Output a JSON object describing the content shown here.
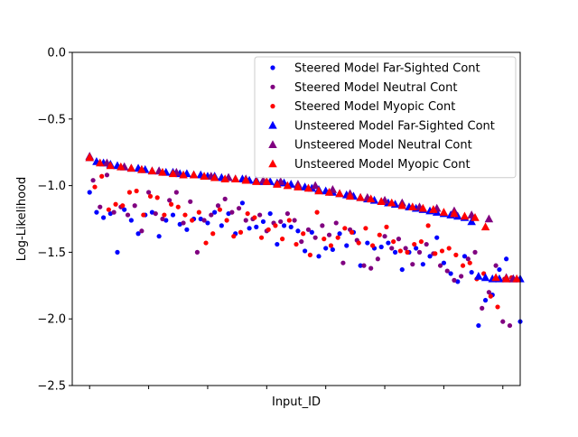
{
  "chart_data": {
    "type": "scatter",
    "title": "",
    "xlabel": "Input_ID",
    "ylabel": "Log-Likelihood",
    "ylim": [
      -2.5,
      0
    ],
    "yticks": [
      0,
      -0.5,
      -1,
      -1.5,
      -2,
      -2.5
    ],
    "ytick_labels": [
      "0.0",
      "−0.5",
      "−1.0",
      "−1.5",
      "−2.0",
      "−2.5"
    ],
    "xlim": [
      -5,
      124
    ],
    "xticks": [
      0,
      17,
      34,
      51,
      68,
      85,
      102,
      119
    ],
    "xtick_labels": [
      "",
      "",
      "",
      "",
      "",
      "",
      "",
      ""
    ],
    "grid": false,
    "legend_position": "top-right",
    "series": [
      {
        "name": "Steered Model Far-Sighted Cont",
        "marker": "dot",
        "color": "#0000ff",
        "x": [
          0,
          2,
          4,
          6,
          8,
          10,
          12,
          14,
          16,
          18,
          20,
          22,
          24,
          26,
          28,
          30,
          32,
          34,
          36,
          38,
          40,
          42,
          44,
          46,
          48,
          50,
          52,
          54,
          56,
          58,
          60,
          62,
          64,
          66,
          68,
          70,
          72,
          74,
          76,
          78,
          80,
          82,
          84,
          86,
          88,
          90,
          92,
          94,
          96,
          98,
          100,
          102,
          104,
          106,
          108,
          110,
          112,
          114,
          116,
          118,
          120,
          122,
          124
        ],
        "y": [
          -1.05,
          -1.2,
          -1.24,
          -1.21,
          -1.5,
          -1.18,
          -1.26,
          -1.36,
          -1.22,
          -1.2,
          -1.38,
          -1.26,
          -1.22,
          -1.29,
          -1.33,
          -1.25,
          -1.25,
          -1.28,
          -1.2,
          -1.3,
          -1.21,
          -1.36,
          -1.13,
          -1.32,
          -1.31,
          -1.27,
          -1.21,
          -1.44,
          -1.3,
          -1.31,
          -1.34,
          -1.49,
          -1.35,
          -1.53,
          -1.47,
          -1.48,
          -1.36,
          -1.45,
          -1.35,
          -1.6,
          -1.43,
          -1.47,
          -1.46,
          -1.43,
          -1.5,
          -1.63,
          -1.5,
          -1.47,
          -1.59,
          -1.53,
          -1.39,
          -1.58,
          -1.66,
          -1.72,
          -1.53,
          -1.65,
          -2.05,
          -1.86,
          -1.82,
          -1.63,
          -1.55,
          -1.7,
          -2.02
        ]
      },
      {
        "name": "Steered Model Neutral Cont",
        "marker": "dot",
        "color": "#800080",
        "x": [
          1,
          3,
          5,
          7,
          9,
          11,
          13,
          15,
          17,
          19,
          21,
          23,
          25,
          27,
          29,
          31,
          33,
          35,
          37,
          39,
          41,
          43,
          45,
          47,
          49,
          51,
          53,
          55,
          57,
          59,
          61,
          63,
          65,
          67,
          69,
          71,
          73,
          75,
          77,
          79,
          81,
          83,
          85,
          87,
          89,
          91,
          93,
          95,
          97,
          99,
          101,
          103,
          105,
          107,
          109,
          111,
          113,
          115,
          117,
          119,
          121
        ],
        "y": [
          -0.96,
          -1.16,
          -0.92,
          -1.2,
          -1.16,
          -1.22,
          -1.15,
          -1.34,
          -1.05,
          -1.21,
          -1.25,
          -1.11,
          -1.05,
          -1.28,
          -1.12,
          -1.5,
          -1.26,
          -1.22,
          -1.15,
          -1.1,
          -1.2,
          -1.17,
          -1.26,
          -1.25,
          -1.22,
          -1.34,
          -1.28,
          -1.27,
          -1.21,
          -1.26,
          -1.42,
          -1.33,
          -1.39,
          -1.3,
          -1.37,
          -1.28,
          -1.58,
          -1.33,
          -1.41,
          -1.6,
          -1.62,
          -1.55,
          -1.38,
          -1.47,
          -1.4,
          -1.47,
          -1.59,
          -1.5,
          -1.44,
          -1.51,
          -1.6,
          -1.64,
          -1.71,
          -1.68,
          -1.55,
          -1.5,
          -1.92,
          -1.8,
          -1.6,
          -2.02,
          -2.05
        ]
      },
      {
        "name": "Steered Model Myopic Cont",
        "marker": "dot",
        "color": "#ff0000",
        "x": [
          1.5,
          3.5,
          5.5,
          7.5,
          9.5,
          11.5,
          13.5,
          15.5,
          17.5,
          19.5,
          21.5,
          23.5,
          25.5,
          27.5,
          29.5,
          31.5,
          33.5,
          35.5,
          37.5,
          39.5,
          41.5,
          43.5,
          45.5,
          47.5,
          49.5,
          51.5,
          53.5,
          55.5,
          57.5,
          59.5,
          61.5,
          63.5,
          65.5,
          67.5,
          69.5,
          71.5,
          73.5,
          75.5,
          77.5,
          79.5,
          81.5,
          83.5,
          85.5,
          87.5,
          89.5,
          91.5,
          93.5,
          95.5,
          97.5,
          99.5,
          101.5,
          103.5,
          105.5,
          107.5,
          109.5,
          111.5,
          113.5,
          115.5,
          117.5,
          119.5,
          121.5
        ],
        "y": [
          -1.01,
          -0.93,
          -1.18,
          -1.14,
          -1.15,
          -1.05,
          -1.04,
          -1.22,
          -1.08,
          -1.09,
          -1.22,
          -1.14,
          -1.16,
          -1.22,
          -1.26,
          -1.2,
          -1.43,
          -1.36,
          -1.18,
          -1.26,
          -1.38,
          -1.35,
          -1.21,
          -1.24,
          -1.39,
          -1.33,
          -1.3,
          -1.4,
          -1.26,
          -1.44,
          -1.36,
          -1.52,
          -1.2,
          -1.4,
          -1.45,
          -1.39,
          -1.32,
          -1.35,
          -1.43,
          -1.32,
          -1.45,
          -1.37,
          -1.31,
          -1.42,
          -1.49,
          -1.5,
          -1.44,
          -1.42,
          -1.3,
          -1.51,
          -1.49,
          -1.47,
          -1.52,
          -1.6,
          -1.58,
          -1.7,
          -1.66,
          -1.83,
          -1.91,
          -1.7,
          -1.69
        ]
      },
      {
        "name": "Unsteered Model Far-Sighted Cont",
        "marker": "triangle",
        "color": "#0000ff",
        "x": [
          0,
          2,
          4,
          6,
          8,
          10,
          12,
          14,
          16,
          18,
          20,
          22,
          24,
          26,
          28,
          30,
          32,
          34,
          36,
          38,
          40,
          42,
          44,
          46,
          48,
          50,
          52,
          54,
          56,
          58,
          60,
          62,
          64,
          66,
          68,
          70,
          72,
          74,
          76,
          78,
          80,
          82,
          84,
          86,
          88,
          90,
          92,
          94,
          96,
          98,
          100,
          102,
          104,
          106,
          108,
          110,
          112,
          114,
          116,
          118,
          120,
          122,
          124
        ],
        "y": [
          -0.79,
          -0.82,
          -0.83,
          -0.84,
          -0.85,
          -0.86,
          -0.87,
          -0.87,
          -0.88,
          -0.89,
          -0.89,
          -0.9,
          -0.9,
          -0.91,
          -0.91,
          -0.92,
          -0.92,
          -0.93,
          -0.93,
          -0.94,
          -0.94,
          -0.95,
          -0.95,
          -0.96,
          -0.96,
          -0.97,
          -0.97,
          -0.98,
          -0.98,
          -0.99,
          -1.0,
          -1.01,
          -1.02,
          -1.03,
          -1.04,
          -1.05,
          -1.06,
          -1.07,
          -1.08,
          -1.09,
          -1.1,
          -1.11,
          -1.12,
          -1.13,
          -1.14,
          -1.15,
          -1.16,
          -1.17,
          -1.18,
          -1.19,
          -1.2,
          -1.21,
          -1.22,
          -1.23,
          -1.24,
          -1.27,
          -1.68,
          -1.69,
          -1.7,
          -1.7,
          -1.7,
          -1.7,
          -1.7
        ]
      },
      {
        "name": "Unsteered Model Neutral Cont",
        "marker": "triangle",
        "color": "#800080",
        "x": [
          0,
          5,
          10,
          15,
          20,
          25,
          30,
          35,
          40,
          45,
          50,
          55,
          60,
          65,
          70,
          75,
          80,
          85,
          90,
          95,
          100,
          105,
          110,
          115,
          120,
          122
        ],
        "y": [
          -0.78,
          -0.83,
          -0.86,
          -0.88,
          -0.89,
          -0.9,
          -0.92,
          -0.93,
          -0.94,
          -0.95,
          -0.96,
          -0.97,
          -0.99,
          -1.0,
          -1.03,
          -1.06,
          -1.09,
          -1.11,
          -1.13,
          -1.16,
          -1.17,
          -1.19,
          -1.22,
          -1.25,
          -1.69,
          -1.7
        ]
      },
      {
        "name": "Unsteered Model Myopic Cont",
        "marker": "triangle",
        "color": "#ff0000",
        "x": [
          0,
          3,
          6,
          9,
          12,
          15,
          18,
          21,
          24,
          27,
          30,
          33,
          36,
          39,
          42,
          45,
          48,
          51,
          54,
          57,
          60,
          63,
          66,
          69,
          72,
          75,
          78,
          81,
          84,
          87,
          90,
          93,
          96,
          99,
          102,
          105,
          108,
          111,
          114,
          117,
          120,
          123
        ],
        "y": [
          -0.79,
          -0.83,
          -0.85,
          -0.86,
          -0.87,
          -0.88,
          -0.89,
          -0.9,
          -0.91,
          -0.92,
          -0.92,
          -0.93,
          -0.94,
          -0.95,
          -0.95,
          -0.96,
          -0.97,
          -0.97,
          -0.99,
          -1.0,
          -1.01,
          -1.02,
          -1.04,
          -1.05,
          -1.06,
          -1.08,
          -1.09,
          -1.1,
          -1.12,
          -1.13,
          -1.15,
          -1.16,
          -1.17,
          -1.18,
          -1.2,
          -1.21,
          -1.23,
          -1.24,
          -1.31,
          -1.69,
          -1.7,
          -1.7
        ]
      }
    ]
  }
}
